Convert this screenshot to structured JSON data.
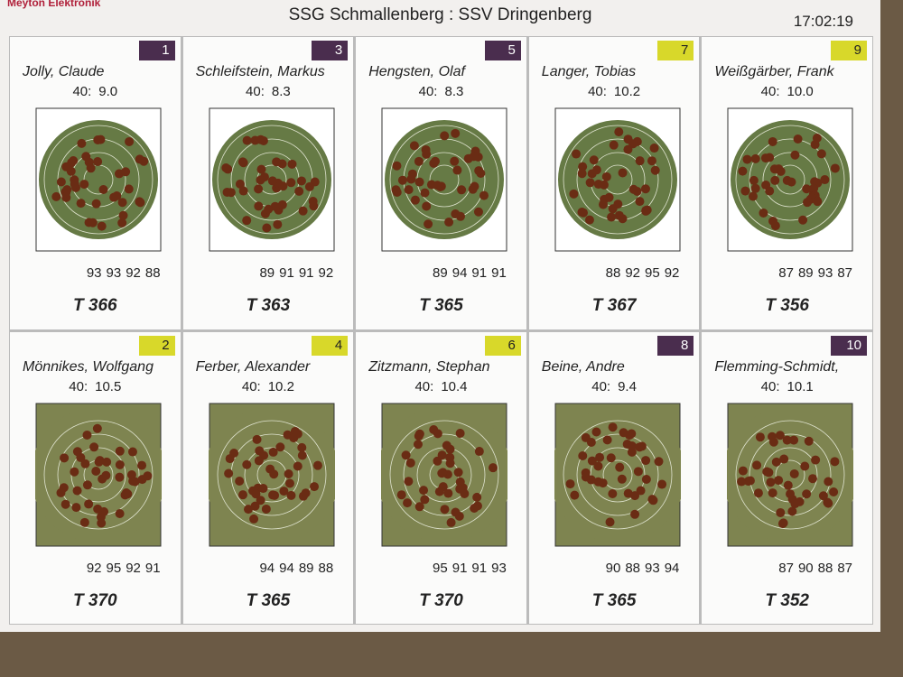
{
  "header": {
    "brand": "Meyton Elektronik",
    "title": "SSG Schmallenberg : SSV Dringenberg",
    "time": "17:02:19"
  },
  "cards": [
    {
      "number": 1,
      "badge_color": "#4a2d4e",
      "name": "Jolly, Claude",
      "shot_label": "40:",
      "last_shot": "9.0",
      "series": [
        93,
        93,
        92,
        88
      ],
      "total": "T 366"
    },
    {
      "number": 3,
      "badge_color": "#4a2d4e",
      "name": "Schleifstein, Markus",
      "shot_label": "40:",
      "last_shot": "8.3",
      "series": [
        89,
        91,
        91,
        92
      ],
      "total": "T 363"
    },
    {
      "number": 5,
      "badge_color": "#4a2d4e",
      "name": "Hengsten, Olaf",
      "shot_label": "40:",
      "last_shot": "8.3",
      "series": [
        89,
        94,
        91,
        91
      ],
      "total": "T 365"
    },
    {
      "number": 7,
      "badge_color": "#d8d82a",
      "name": "Langer, Tobias",
      "shot_label": "40:",
      "last_shot": "10.2",
      "series": [
        88,
        92,
        95,
        92
      ],
      "total": "T 367"
    },
    {
      "number": 9,
      "badge_color": "#d8d82a",
      "name": "Weißgärber, Frank",
      "shot_label": "40:",
      "last_shot": "10.0",
      "series": [
        87,
        89,
        93,
        87
      ],
      "total": "T 356"
    },
    {
      "number": 2,
      "badge_color": "#d8d82a",
      "name": "Mönnikes, Wolfgang",
      "shot_label": "40:",
      "last_shot": "10.5",
      "series": [
        92,
        95,
        92,
        91
      ],
      "total": "T 370"
    },
    {
      "number": 4,
      "badge_color": "#d8d82a",
      "name": "Ferber, Alexander",
      "shot_label": "40:",
      "last_shot": "10.2",
      "series": [
        94,
        94,
        89,
        88
      ],
      "total": "T 365"
    },
    {
      "number": 6,
      "badge_color": "#d8d82a",
      "name": "Zitzmann, Stephan",
      "shot_label": "40:",
      "last_shot": "10.4",
      "series": [
        95,
        91,
        91,
        93
      ],
      "total": "T 370"
    },
    {
      "number": 8,
      "badge_color": "#4a2d4e",
      "name": "Beine, Andre",
      "shot_label": "40:",
      "last_shot": "9.4",
      "series": [
        90,
        88,
        93,
        94
      ],
      "total": "T 365"
    },
    {
      "number": 10,
      "badge_color": "#4a2d4e",
      "name": "Flemming-Schmidt,",
      "shot_label": "40:",
      "last_shot": "10.1",
      "series": [
        87,
        90,
        88,
        87
      ],
      "total": "T 352"
    }
  ]
}
